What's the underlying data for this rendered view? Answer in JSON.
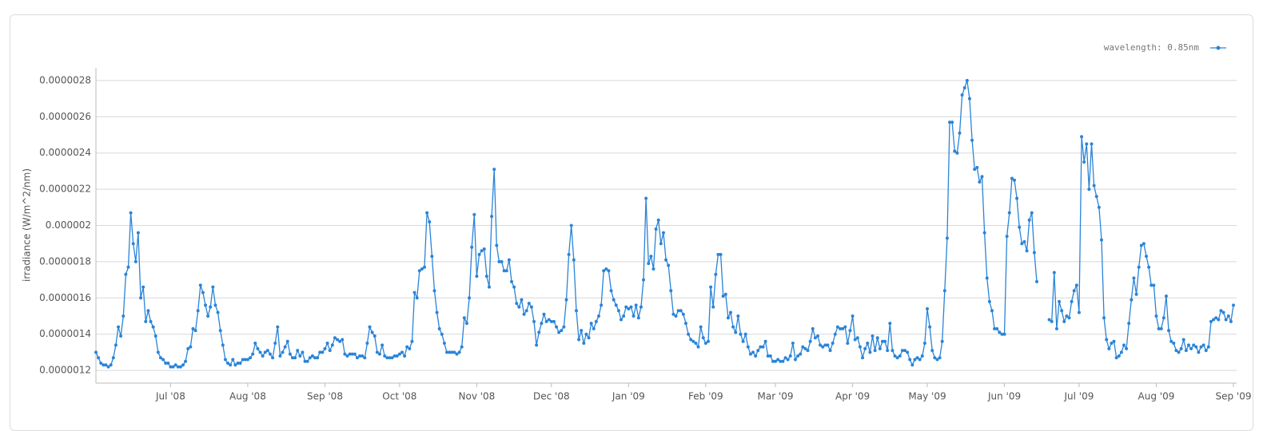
{
  "chart_data": {
    "type": "line",
    "legend_position": "top-right",
    "y_label": "irradiance (W/m^2/nm)",
    "ylim": [
      1.13e-06,
      2.87e-06
    ],
    "yticks": [
      1.2e-06,
      1.4e-06,
      1.6e-06,
      1.8e-06,
      2e-06,
      2.2e-06,
      2.4e-06,
      2.6e-06,
      2.8e-06
    ],
    "grid": true,
    "categories": [
      null,
      null,
      null,
      null,
      null,
      null,
      null,
      null,
      null,
      null,
      null,
      null,
      null,
      null,
      null,
      null,
      null,
      null,
      null,
      null,
      null,
      null,
      null,
      null,
      null,
      null,
      null,
      null,
      null,
      null,
      "Jul '08",
      null,
      null,
      null,
      null,
      null,
      null,
      null,
      null,
      null,
      null,
      null,
      null,
      null,
      null,
      null,
      null,
      null,
      null,
      null,
      null,
      null,
      null,
      null,
      null,
      null,
      null,
      null,
      null,
      null,
      null,
      "Aug '08",
      null,
      null,
      null,
      null,
      null,
      null,
      null,
      null,
      null,
      null,
      null,
      null,
      null,
      null,
      null,
      null,
      null,
      null,
      null,
      null,
      null,
      null,
      null,
      null,
      null,
      null,
      null,
      null,
      null,
      null,
      "Sep '08",
      null,
      null,
      null,
      null,
      null,
      null,
      null,
      null,
      null,
      null,
      null,
      null,
      null,
      null,
      null,
      null,
      null,
      null,
      null,
      null,
      null,
      null,
      null,
      null,
      null,
      null,
      null,
      null,
      null,
      "Oct '08",
      null,
      null,
      null,
      null,
      null,
      null,
      null,
      null,
      null,
      null,
      null,
      null,
      null,
      null,
      null,
      null,
      null,
      null,
      null,
      null,
      null,
      null,
      null,
      null,
      null,
      null,
      null,
      null,
      null,
      null,
      "Nov '08",
      null,
      null,
      null,
      null,
      null,
      null,
      null,
      null,
      null,
      null,
      null,
      null,
      null,
      null,
      null,
      null,
      null,
      null,
      null,
      null,
      null,
      null,
      null,
      null,
      null,
      null,
      null,
      null,
      null,
      "Dec '08",
      null,
      null,
      null,
      null,
      null,
      null,
      null,
      null,
      null,
      null,
      null,
      null,
      null,
      null,
      null,
      null,
      null,
      null,
      null,
      null,
      null,
      null,
      null,
      null,
      null,
      null,
      null,
      null,
      null,
      null,
      "Jan '09",
      null,
      null,
      null,
      null,
      null,
      null,
      null,
      null,
      null,
      null,
      null,
      null,
      null,
      null,
      null,
      null,
      null,
      null,
      null,
      null,
      null,
      null,
      null,
      null,
      null,
      null,
      null,
      null,
      null,
      null,
      "Feb '09",
      null,
      null,
      null,
      null,
      null,
      null,
      null,
      null,
      null,
      null,
      null,
      null,
      null,
      null,
      null,
      null,
      null,
      null,
      null,
      null,
      null,
      null,
      null,
      null,
      null,
      null,
      null,
      "Mar '09",
      null,
      null,
      null,
      null,
      null,
      null,
      null,
      null,
      null,
      null,
      null,
      null,
      null,
      null,
      null,
      null,
      null,
      null,
      null,
      null,
      null,
      null,
      null,
      null,
      null,
      null,
      null,
      null,
      null,
      null,
      "Apr '09",
      null,
      null,
      null,
      null,
      null,
      null,
      null,
      null,
      null,
      null,
      null,
      null,
      null,
      null,
      null,
      null,
      null,
      null,
      null,
      null,
      null,
      null,
      null,
      null,
      null,
      null,
      null,
      null,
      null,
      "May '09",
      null,
      null,
      null,
      null,
      null,
      null,
      null,
      null,
      null,
      null,
      null,
      null,
      null,
      null,
      null,
      null,
      null,
      null,
      null,
      null,
      null,
      null,
      null,
      null,
      null,
      null,
      null,
      null,
      null,
      null,
      "Jun '09",
      null,
      null,
      null,
      null,
      null,
      null,
      null,
      null,
      null,
      null,
      null,
      null,
      null,
      null,
      null,
      null,
      null,
      null,
      null,
      null,
      null,
      null,
      null,
      null,
      null,
      null,
      null,
      null,
      null,
      "Jul '09",
      null,
      null,
      null,
      null,
      null,
      null,
      null,
      null,
      null,
      null,
      null,
      null,
      null,
      null,
      null,
      null,
      null,
      null,
      null,
      null,
      null,
      null,
      null,
      null,
      null,
      null,
      null,
      null,
      null,
      null,
      "Aug '09",
      null,
      null,
      null,
      null,
      null,
      null,
      null,
      null,
      null,
      null,
      null,
      null,
      null,
      null,
      null,
      null,
      null,
      null,
      null,
      null,
      null,
      null,
      null,
      null,
      null,
      null,
      null,
      null,
      null,
      null,
      "Sep '09"
    ],
    "series": [
      {
        "name": "wavelength: 0.85nm",
        "color": "#2a84d8",
        "values": [
          1.3e-06,
          1.27e-06,
          1.24e-06,
          1.23e-06,
          1.23e-06,
          1.22e-06,
          1.23e-06,
          1.27e-06,
          1.34e-06,
          1.44e-06,
          1.39e-06,
          1.5e-06,
          1.73e-06,
          1.77e-06,
          2.07e-06,
          1.9e-06,
          1.8e-06,
          1.96e-06,
          1.6e-06,
          1.66e-06,
          1.47e-06,
          1.53e-06,
          1.47e-06,
          1.44e-06,
          1.39e-06,
          1.3e-06,
          1.27e-06,
          1.26e-06,
          1.24e-06,
          1.24e-06,
          1.22e-06,
          1.22e-06,
          1.23e-06,
          1.22e-06,
          1.22e-06,
          1.23e-06,
          1.25e-06,
          1.32e-06,
          1.33e-06,
          1.43e-06,
          1.42e-06,
          1.53e-06,
          1.67e-06,
          1.63e-06,
          1.56e-06,
          1.5e-06,
          1.55e-06,
          1.66e-06,
          1.56e-06,
          1.52e-06,
          1.42e-06,
          1.34e-06,
          1.26e-06,
          1.24e-06,
          1.23e-06,
          1.26e-06,
          1.23e-06,
          1.24e-06,
          1.24e-06,
          1.26e-06,
          1.26e-06,
          1.26e-06,
          1.27e-06,
          1.29e-06,
          1.35e-06,
          1.32e-06,
          1.3e-06,
          1.28e-06,
          1.3e-06,
          1.31e-06,
          1.29e-06,
          1.27e-06,
          1.35e-06,
          1.44e-06,
          1.28e-06,
          1.3e-06,
          1.33e-06,
          1.36e-06,
          1.29e-06,
          1.27e-06,
          1.27e-06,
          1.31e-06,
          1.28e-06,
          1.3e-06,
          1.25e-06,
          1.25e-06,
          1.27e-06,
          1.28e-06,
          1.27e-06,
          1.27e-06,
          1.3e-06,
          1.3e-06,
          1.32e-06,
          1.35e-06,
          1.31e-06,
          1.34e-06,
          1.38e-06,
          1.37e-06,
          1.36e-06,
          1.37e-06,
          1.29e-06,
          1.28e-06,
          1.29e-06,
          1.29e-06,
          1.29e-06,
          1.27e-06,
          1.28e-06,
          1.28e-06,
          1.27e-06,
          1.35e-06,
          1.44e-06,
          1.41e-06,
          1.39e-06,
          1.3e-06,
          1.29e-06,
          1.34e-06,
          1.28e-06,
          1.27e-06,
          1.27e-06,
          1.27e-06,
          1.28e-06,
          1.28e-06,
          1.29e-06,
          1.3e-06,
          1.28e-06,
          1.33e-06,
          1.32e-06,
          1.36e-06,
          1.63e-06,
          1.6e-06,
          1.75e-06,
          1.76e-06,
          1.77e-06,
          2.07e-06,
          2.02e-06,
          1.83e-06,
          1.64e-06,
          1.52e-06,
          1.43e-06,
          1.4e-06,
          1.35e-06,
          1.3e-06,
          1.3e-06,
          1.3e-06,
          1.3e-06,
          1.29e-06,
          1.3e-06,
          1.33e-06,
          1.49e-06,
          1.46e-06,
          1.6e-06,
          1.88e-06,
          2.06e-06,
          1.72e-06,
          1.84e-06,
          1.86e-06,
          1.87e-06,
          1.72e-06,
          1.66e-06,
          2.05e-06,
          2.31e-06,
          1.89e-06,
          1.8e-06,
          1.8e-06,
          1.75e-06,
          1.75e-06,
          1.81e-06,
          1.69e-06,
          1.66e-06,
          1.57e-06,
          1.55e-06,
          1.59e-06,
          1.51e-06,
          1.53e-06,
          1.57e-06,
          1.55e-06,
          1.47e-06,
          1.34e-06,
          1.41e-06,
          1.46e-06,
          1.51e-06,
          1.47e-06,
          1.48e-06,
          1.47e-06,
          1.47e-06,
          1.44e-06,
          1.41e-06,
          1.42e-06,
          1.44e-06,
          1.59e-06,
          1.84e-06,
          2e-06,
          1.81e-06,
          1.53e-06,
          1.37e-06,
          1.42e-06,
          1.35e-06,
          1.4e-06,
          1.38e-06,
          1.46e-06,
          1.43e-06,
          1.47e-06,
          1.5e-06,
          1.56e-06,
          1.75e-06,
          1.76e-06,
          1.75e-06,
          1.64e-06,
          1.59e-06,
          1.56e-06,
          1.53e-06,
          1.48e-06,
          1.5e-06,
          1.55e-06,
          1.54e-06,
          1.55e-06,
          1.5e-06,
          1.56e-06,
          1.49e-06,
          1.55e-06,
          1.7e-06,
          2.15e-06,
          1.79e-06,
          1.83e-06,
          1.76e-06,
          1.98e-06,
          2.03e-06,
          1.9e-06,
          1.96e-06,
          1.81e-06,
          1.78e-06,
          1.64e-06,
          1.51e-06,
          1.5e-06,
          1.53e-06,
          1.53e-06,
          1.51e-06,
          1.46e-06,
          1.4e-06,
          1.37e-06,
          1.36e-06,
          1.35e-06,
          1.33e-06,
          1.44e-06,
          1.38e-06,
          1.35e-06,
          1.36e-06,
          1.66e-06,
          1.55e-06,
          1.73e-06,
          1.84e-06,
          1.84e-06,
          1.61e-06,
          1.62e-06,
          1.49e-06,
          1.52e-06,
          1.44e-06,
          1.41e-06,
          1.5e-06,
          1.4e-06,
          1.36e-06,
          1.4e-06,
          1.33e-06,
          1.29e-06,
          1.3e-06,
          1.28e-06,
          1.31e-06,
          1.33e-06,
          1.33e-06,
          1.36e-06,
          1.28e-06,
          1.28e-06,
          1.25e-06,
          1.25e-06,
          1.26e-06,
          1.25e-06,
          1.25e-06,
          1.27e-06,
          1.26e-06,
          1.28e-06,
          1.35e-06,
          1.26e-06,
          1.28e-06,
          1.29e-06,
          1.33e-06,
          1.32e-06,
          1.31e-06,
          1.36e-06,
          1.43e-06,
          1.38e-06,
          1.39e-06,
          1.34e-06,
          1.33e-06,
          1.34e-06,
          1.34e-06,
          1.31e-06,
          1.35e-06,
          1.4e-06,
          1.44e-06,
          1.43e-06,
          1.43e-06,
          1.44e-06,
          1.35e-06,
          1.42e-06,
          1.5e-06,
          1.37e-06,
          1.38e-06,
          1.33e-06,
          1.27e-06,
          1.32e-06,
          1.35e-06,
          1.3e-06,
          1.39e-06,
          1.31e-06,
          1.38e-06,
          1.32e-06,
          1.36e-06,
          1.36e-06,
          1.31e-06,
          1.46e-06,
          1.31e-06,
          1.28e-06,
          1.27e-06,
          1.28e-06,
          1.31e-06,
          1.31e-06,
          1.3e-06,
          1.26e-06,
          1.23e-06,
          1.26e-06,
          1.27e-06,
          1.26e-06,
          1.28e-06,
          1.35e-06,
          1.54e-06,
          1.44e-06,
          1.31e-06,
          1.27e-06,
          1.26e-06,
          1.27e-06,
          1.36e-06,
          1.64e-06,
          1.93e-06,
          2.57e-06,
          2.57e-06,
          2.41e-06,
          2.4e-06,
          2.51e-06,
          2.72e-06,
          2.76e-06,
          2.8e-06,
          2.7e-06,
          2.47e-06,
          2.31e-06,
          2.32e-06,
          2.24e-06,
          2.27e-06,
          1.96e-06,
          1.71e-06,
          1.58e-06,
          1.53e-06,
          1.43e-06,
          1.43e-06,
          1.41e-06,
          1.4e-06,
          1.4e-06,
          1.94e-06,
          2.07e-06,
          2.26e-06,
          2.25e-06,
          2.15e-06,
          1.99e-06,
          1.9e-06,
          1.91e-06,
          1.86e-06,
          2.03e-06,
          2.07e-06,
          1.85e-06,
          1.69e-06,
          null,
          null,
          null,
          null,
          1.48e-06,
          1.47e-06,
          1.74e-06,
          1.43e-06,
          1.58e-06,
          1.53e-06,
          1.47e-06,
          1.5e-06,
          1.49e-06,
          1.58e-06,
          1.64e-06,
          1.67e-06,
          1.52e-06,
          2.49e-06,
          2.35e-06,
          2.45e-06,
          2.2e-06,
          2.45e-06,
          2.22e-06,
          2.16e-06,
          2.1e-06,
          1.92e-06,
          1.49e-06,
          1.37e-06,
          1.32e-06,
          1.35e-06,
          1.36e-06,
          1.27e-06,
          1.28e-06,
          1.3e-06,
          1.34e-06,
          1.32e-06,
          1.46e-06,
          1.59e-06,
          1.71e-06,
          1.62e-06,
          1.77e-06,
          1.89e-06,
          1.9e-06,
          1.83e-06,
          1.77e-06,
          1.67e-06,
          1.67e-06,
          1.5e-06,
          1.43e-06,
          1.43e-06,
          1.49e-06,
          1.61e-06,
          1.42e-06,
          1.36e-06,
          1.35e-06,
          1.31e-06,
          1.3e-06,
          1.32e-06,
          1.37e-06,
          1.31e-06,
          1.34e-06,
          1.32e-06,
          1.34e-06,
          1.33e-06,
          1.3e-06,
          1.33e-06,
          1.34e-06,
          1.31e-06,
          1.33e-06,
          1.47e-06,
          1.48e-06,
          1.49e-06,
          1.48e-06,
          1.53e-06,
          1.52e-06,
          1.48e-06,
          1.5e-06,
          1.47e-06,
          1.56e-06
        ]
      }
    ]
  }
}
